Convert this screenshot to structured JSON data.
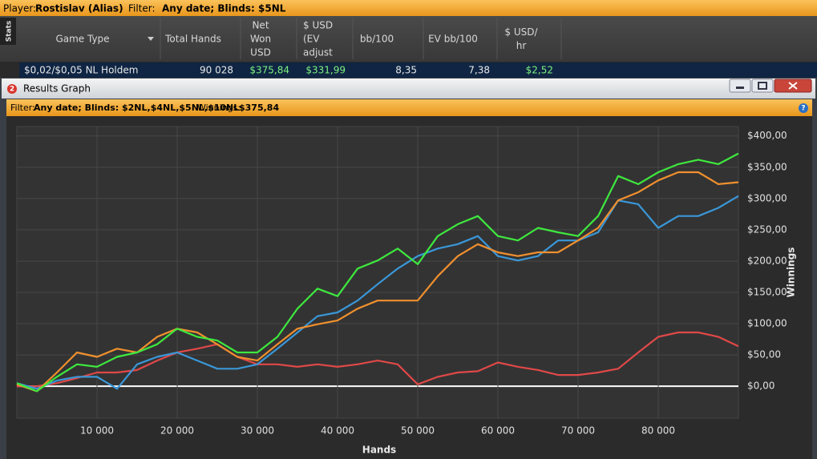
{
  "header": {
    "player_label": "Player:",
    "player": "Rostislav (Alias)",
    "filter_label": "Filter:",
    "filter": "Any date; Blinds: $5NL"
  },
  "side_tab": "Stats",
  "table": {
    "columns": [
      [
        "Game Type"
      ],
      [
        "Total Hands"
      ],
      [
        "Net",
        "Won",
        "USD"
      ],
      [
        "$ USD",
        "(EV",
        "adjust"
      ],
      [
        "bb/100"
      ],
      [
        "EV bb/100"
      ],
      [
        "$ USD/",
        "hr"
      ]
    ],
    "rows": [
      [
        "$0,02/$0,05 NL Holdem",
        "90 028",
        "$375,84",
        "$331,99",
        "8,35",
        "7,38",
        "$2,52"
      ]
    ]
  },
  "window": {
    "badge": "2",
    "title": "Results Graph",
    "filter_label": "Filter:",
    "filter": "Any date; Blinds: $2NL,$4NL,$5NL,$10NL",
    "winnings_label": "Winnings:",
    "winnings": "$375,84",
    "help": "?"
  },
  "chart_data": {
    "type": "line",
    "x_label": "Hands",
    "y_label": "Winnings",
    "x": [
      0,
      2500,
      5000,
      7500,
      10000,
      12500,
      15000,
      17500,
      20000,
      22500,
      25000,
      27500,
      30000,
      32500,
      35000,
      37500,
      40000,
      42500,
      45000,
      47500,
      50000,
      52500,
      55000,
      57500,
      60000,
      62500,
      65000,
      67500,
      70000,
      72500,
      75000,
      77500,
      80000,
      82500,
      85000,
      87500,
      90000
    ],
    "series": [
      {
        "color": "#e04848",
        "values": [
          0,
          0,
          5,
          13,
          22,
          22,
          26,
          41,
          54,
          60,
          67,
          47,
          35,
          35,
          31,
          35,
          31,
          35,
          41,
          35,
          3,
          15,
          22,
          24,
          38,
          31,
          26,
          18,
          18,
          22,
          28,
          54,
          79,
          86,
          86,
          79,
          64
        ]
      },
      {
        "color": "#3a97d8",
        "values": [
          5,
          -4,
          9,
          15,
          15,
          -4,
          35,
          47,
          54,
          41,
          28,
          28,
          35,
          60,
          86,
          112,
          118,
          137,
          163,
          188,
          208,
          220,
          227,
          240,
          208,
          201,
          208,
          233,
          233,
          246,
          297,
          291,
          253,
          272,
          272,
          285,
          304
        ]
      },
      {
        "color": "#f0902e",
        "values": [
          3,
          -8,
          22,
          54,
          47,
          60,
          54,
          79,
          92,
          86,
          67,
          47,
          41,
          67,
          92,
          99,
          105,
          124,
          137,
          137,
          137,
          176,
          208,
          227,
          214,
          208,
          214,
          214,
          233,
          253,
          297,
          310,
          329,
          342,
          342,
          323,
          326
        ]
      },
      {
        "color": "#3ee83e",
        "values": [
          5,
          -8,
          15,
          35,
          31,
          47,
          54,
          67,
          92,
          79,
          73,
          54,
          54,
          79,
          124,
          156,
          144,
          188,
          201,
          220,
          195,
          240,
          259,
          272,
          240,
          233,
          253,
          246,
          240,
          272,
          336,
          323,
          342,
          355,
          362,
          355,
          372
        ]
      }
    ],
    "xlim": [
      0,
      90000
    ],
    "ylim": [
      -51,
      415
    ],
    "xticks": [
      {
        "value": 10000,
        "label": "10 000"
      },
      {
        "value": 20000,
        "label": "20 000"
      },
      {
        "value": 30000,
        "label": "30 000"
      },
      {
        "value": 40000,
        "label": "40 000"
      },
      {
        "value": 50000,
        "label": "50 000"
      },
      {
        "value": 60000,
        "label": "60 000"
      },
      {
        "value": 70000,
        "label": "70 000"
      },
      {
        "value": 80000,
        "label": "80 000"
      }
    ],
    "yticks": [
      {
        "value": 0,
        "label": "$0,00"
      },
      {
        "value": 50,
        "label": "$50,00"
      },
      {
        "value": 100,
        "label": "$100,00"
      },
      {
        "value": 150,
        "label": "$150,00"
      },
      {
        "value": 200,
        "label": "$200,00"
      },
      {
        "value": 250,
        "label": "$250,00"
      },
      {
        "value": 300,
        "label": "$300,00"
      },
      {
        "value": 350,
        "label": "$350,00"
      },
      {
        "value": 400,
        "label": "$400,00"
      }
    ],
    "grid": true
  }
}
